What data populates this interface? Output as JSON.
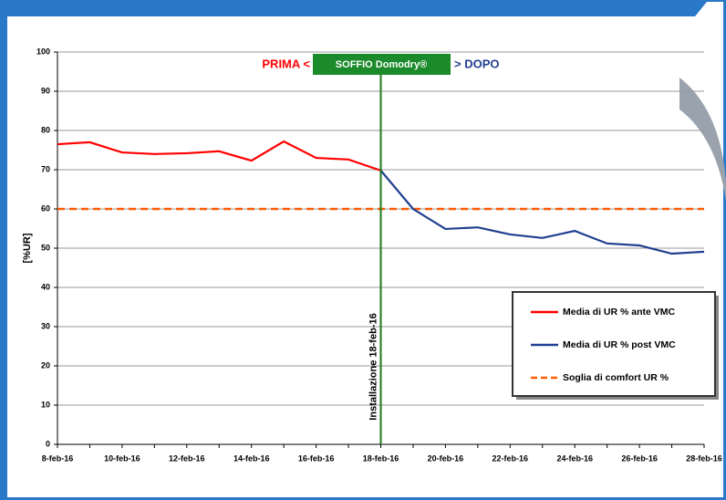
{
  "chart_data": {
    "type": "line",
    "y_label": "[%UR]",
    "categories": [
      "8-feb-16",
      null,
      "10-feb-16",
      null,
      "12-feb-16",
      null,
      "14-feb-16",
      null,
      "16-feb-16",
      null,
      "18-feb-16",
      null,
      "20-feb-16",
      null,
      "22-feb-16",
      null,
      "24-feb-16",
      null,
      "26-feb-16",
      null,
      "28-feb-16"
    ],
    "series": [
      {
        "name": "Media di UR % ante VMC",
        "color": "#ff0000",
        "dashed": false,
        "values": [
          76.5,
          77.0,
          74.4,
          74.0,
          74.2,
          74.7,
          72.3,
          77.2,
          73.0,
          72.6,
          69.8,
          null,
          null,
          null,
          null,
          null,
          null,
          null,
          null,
          null,
          null
        ]
      },
      {
        "name": "Media di UR % post VMC",
        "color": "#1f3f8f",
        "dashed": false,
        "values": [
          null,
          null,
          null,
          null,
          null,
          null,
          null,
          null,
          null,
          null,
          69.8,
          60.0,
          54.9,
          55.3,
          53.5,
          52.6,
          54.4,
          51.2,
          50.7,
          48.6,
          49.1
        ]
      },
      {
        "name": "Soglia di comfort UR %",
        "color": "#ff5a00",
        "dashed": true,
        "values": [
          60,
          60,
          60,
          60,
          60,
          60,
          60,
          60,
          60,
          60,
          60,
          60,
          60,
          60,
          60,
          60,
          60,
          60,
          60,
          60,
          60
        ]
      }
    ],
    "ylim": [
      0,
      100
    ],
    "yticks": [
      0,
      10,
      20,
      30,
      40,
      50,
      60,
      70,
      80,
      90,
      100
    ],
    "grid": true,
    "legend": "lower right",
    "marker": {
      "x": "18-feb-16",
      "label": "Installazione 18-feb-16",
      "color": "#1a7a1a"
    },
    "before_label": "PRIMA <",
    "product_label": "SOFFIO Domodry®",
    "after_label": "> DOPO"
  }
}
